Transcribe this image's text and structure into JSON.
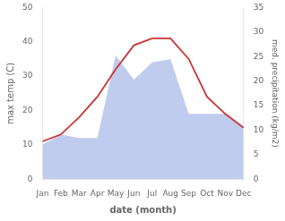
{
  "chart_data": {
    "type": "line",
    "categories": [
      "Jan",
      "Feb",
      "Mar",
      "Apr",
      "May",
      "Jun",
      "Jul",
      "Aug",
      "Sep",
      "Oct",
      "Nov",
      "Dec"
    ],
    "series": [
      {
        "type": "area",
        "color": "#c0ccee",
        "values": [
          10,
          13,
          12,
          12,
          36,
          29,
          34,
          35,
          19,
          19,
          19,
          15
        ]
      },
      {
        "type": "line",
        "color": "#cc3333",
        "values": [
          11,
          13,
          18,
          24,
          32,
          39,
          41,
          41,
          35,
          24,
          19,
          15
        ]
      }
    ],
    "xlabel": "date (month)",
    "ylabel": "max temp (C)",
    "y2label": "med. precipitation (kg/m2)",
    "ylim": [
      0,
      50
    ],
    "yticks": [
      0,
      10,
      20,
      30,
      40,
      50
    ],
    "y2lim": [
      0,
      35
    ],
    "y2ticks": [
      0,
      5,
      10,
      15,
      20,
      25,
      30,
      35
    ],
    "grid": false
  }
}
